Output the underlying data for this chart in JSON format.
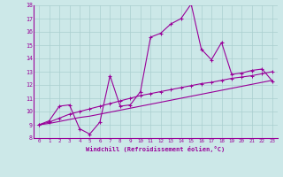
{
  "xlabel": "Windchill (Refroidissement éolien,°C)",
  "bg_color": "#cce8e8",
  "line_color": "#990099",
  "xlim": [
    -0.5,
    23.5
  ],
  "ylim": [
    8,
    18
  ],
  "xticks": [
    0,
    1,
    2,
    3,
    4,
    5,
    6,
    7,
    8,
    9,
    10,
    11,
    12,
    13,
    14,
    15,
    16,
    17,
    18,
    19,
    20,
    21,
    22,
    23
  ],
  "yticks": [
    8,
    9,
    10,
    11,
    12,
    13,
    14,
    15,
    16,
    17,
    18
  ],
  "series1_x": [
    0,
    1,
    2,
    3,
    4,
    5,
    6,
    7,
    8,
    9,
    10,
    11,
    12,
    13,
    14,
    15,
    16,
    17,
    18,
    19,
    20,
    21,
    22,
    23
  ],
  "series1_y": [
    9.0,
    9.3,
    10.4,
    10.5,
    8.7,
    8.3,
    9.2,
    12.7,
    10.4,
    10.5,
    11.5,
    15.6,
    15.9,
    16.6,
    17.0,
    18.1,
    14.7,
    13.9,
    15.2,
    12.8,
    12.9,
    13.1,
    13.2,
    12.3
  ],
  "series2_x": [
    0,
    1,
    2,
    3,
    4,
    5,
    6,
    7,
    8,
    9,
    10,
    11,
    12,
    13,
    14,
    15,
    16,
    17,
    18,
    19,
    20,
    21,
    22,
    23
  ],
  "series2_y": [
    9.0,
    9.2,
    9.5,
    9.8,
    10.0,
    10.2,
    10.4,
    10.6,
    10.8,
    11.0,
    11.2,
    11.35,
    11.5,
    11.65,
    11.8,
    11.95,
    12.1,
    12.2,
    12.35,
    12.5,
    12.6,
    12.7,
    12.85,
    13.0
  ],
  "series3_x": [
    0,
    1,
    2,
    3,
    4,
    5,
    6,
    7,
    8,
    9,
    10,
    11,
    12,
    13,
    14,
    15,
    16,
    17,
    18,
    19,
    20,
    21,
    22,
    23
  ],
  "series3_y": [
    9.0,
    9.1,
    9.25,
    9.4,
    9.55,
    9.65,
    9.8,
    9.95,
    10.1,
    10.25,
    10.4,
    10.55,
    10.7,
    10.85,
    11.0,
    11.15,
    11.3,
    11.45,
    11.6,
    11.75,
    11.9,
    12.05,
    12.2,
    12.35
  ]
}
